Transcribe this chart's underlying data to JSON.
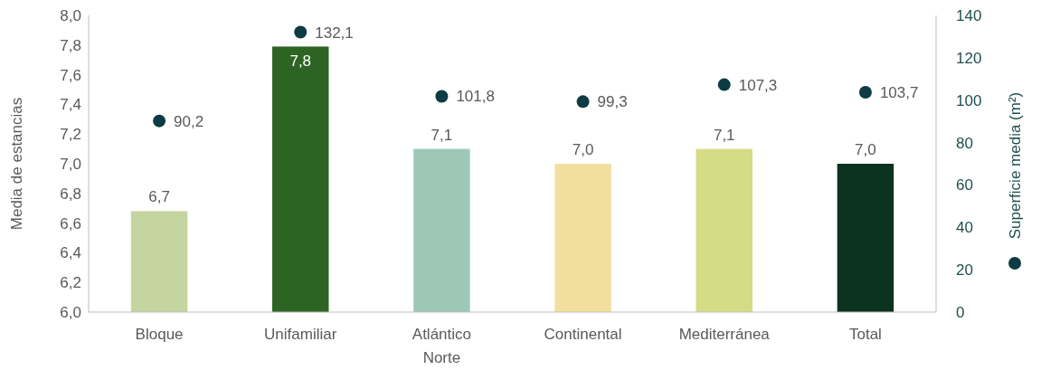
{
  "chart_data": {
    "type": "bar",
    "categories": [
      "Bloque",
      "Unifamiliar",
      "Atlántico Norte",
      "Continental",
      "Mediterránea",
      "Total"
    ],
    "ylabel": "Media de estancias",
    "y2label": "Superficie media (m²)",
    "series": [
      {
        "colors": [
          "#c4d59f",
          "#2e6423",
          "#9dc8b8",
          "#f2dfa0",
          "#d6db85",
          "#0b3320"
        ],
        "values": [
          6.68,
          7.79,
          7.1,
          7.0,
          7.1,
          7.0
        ],
        "value_labels": [
          "6,7",
          "7,8",
          "7,1",
          "7,0",
          "7,1",
          "7,0"
        ]
      },
      {
        "type": "scatter",
        "axis": "y2",
        "color": "#0d3b44",
        "marker": "circle",
        "values": [
          90.2,
          132.1,
          101.8,
          99.3,
          107.3,
          103.7
        ],
        "value_labels": [
          "90,2",
          "132,1",
          "101,8",
          "99,3",
          "107,3",
          "103,7"
        ]
      }
    ],
    "ylim": [
      6.0,
      8.0
    ],
    "yticks": [
      {
        "value": 6.0,
        "label": "6,0"
      },
      {
        "value": 6.2,
        "label": "6,2"
      },
      {
        "value": 6.4,
        "label": "6,4"
      },
      {
        "value": 6.6,
        "label": "6,6"
      },
      {
        "value": 6.8,
        "label": "6,8"
      },
      {
        "value": 7.0,
        "label": "7,0"
      },
      {
        "value": 7.2,
        "label": "7,2"
      },
      {
        "value": 7.4,
        "label": "7,4"
      },
      {
        "value": 7.6,
        "label": "7,6"
      },
      {
        "value": 7.8,
        "label": "7,8"
      },
      {
        "value": 8.0,
        "label": "8,0"
      }
    ],
    "y2lim": [
      0,
      140
    ],
    "y2ticks": [
      0,
      20,
      40,
      60,
      80,
      100,
      120,
      140
    ],
    "grid": false
  }
}
